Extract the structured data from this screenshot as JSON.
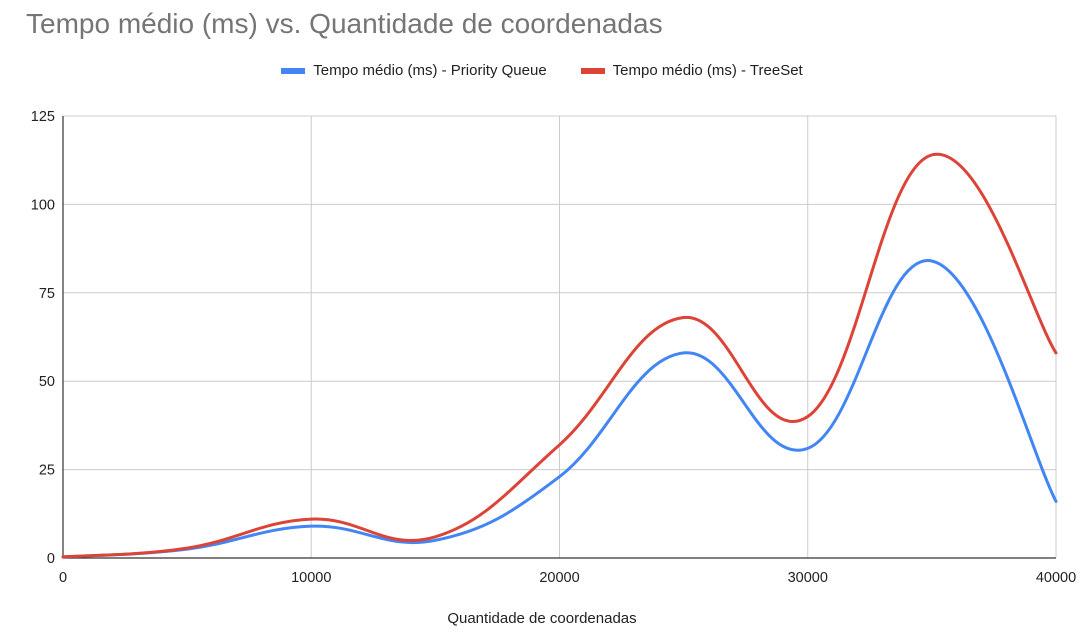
{
  "chart_data": {
    "type": "line",
    "title": "Tempo médio (ms) vs. Quantidade de coordenadas",
    "xlabel": "Quantidade de coordenadas",
    "ylabel": "",
    "xlim": [
      0,
      40000
    ],
    "ylim": [
      0,
      125
    ],
    "xticks": [
      0,
      10000,
      20000,
      30000,
      40000
    ],
    "yticks": [
      0,
      25,
      50,
      75,
      100,
      125
    ],
    "grid": true,
    "legend_position": "top",
    "series": [
      {
        "name": "Tempo médio (ms) - Priority Queue",
        "color": "#4285f4",
        "x": [
          0,
          5000,
          10000,
          15000,
          20000,
          25000,
          30000,
          35000,
          40000
        ],
        "values": [
          0.3,
          2.5,
          9,
          5,
          23,
          58,
          31,
          84,
          16
        ]
      },
      {
        "name": "Tempo médio (ms) - TreeSet",
        "color": "#db4437",
        "x": [
          0,
          5000,
          10000,
          15000,
          20000,
          25000,
          30000,
          35000,
          40000
        ],
        "values": [
          0.3,
          2.8,
          11,
          6,
          32,
          68,
          40,
          114,
          58
        ]
      }
    ]
  }
}
